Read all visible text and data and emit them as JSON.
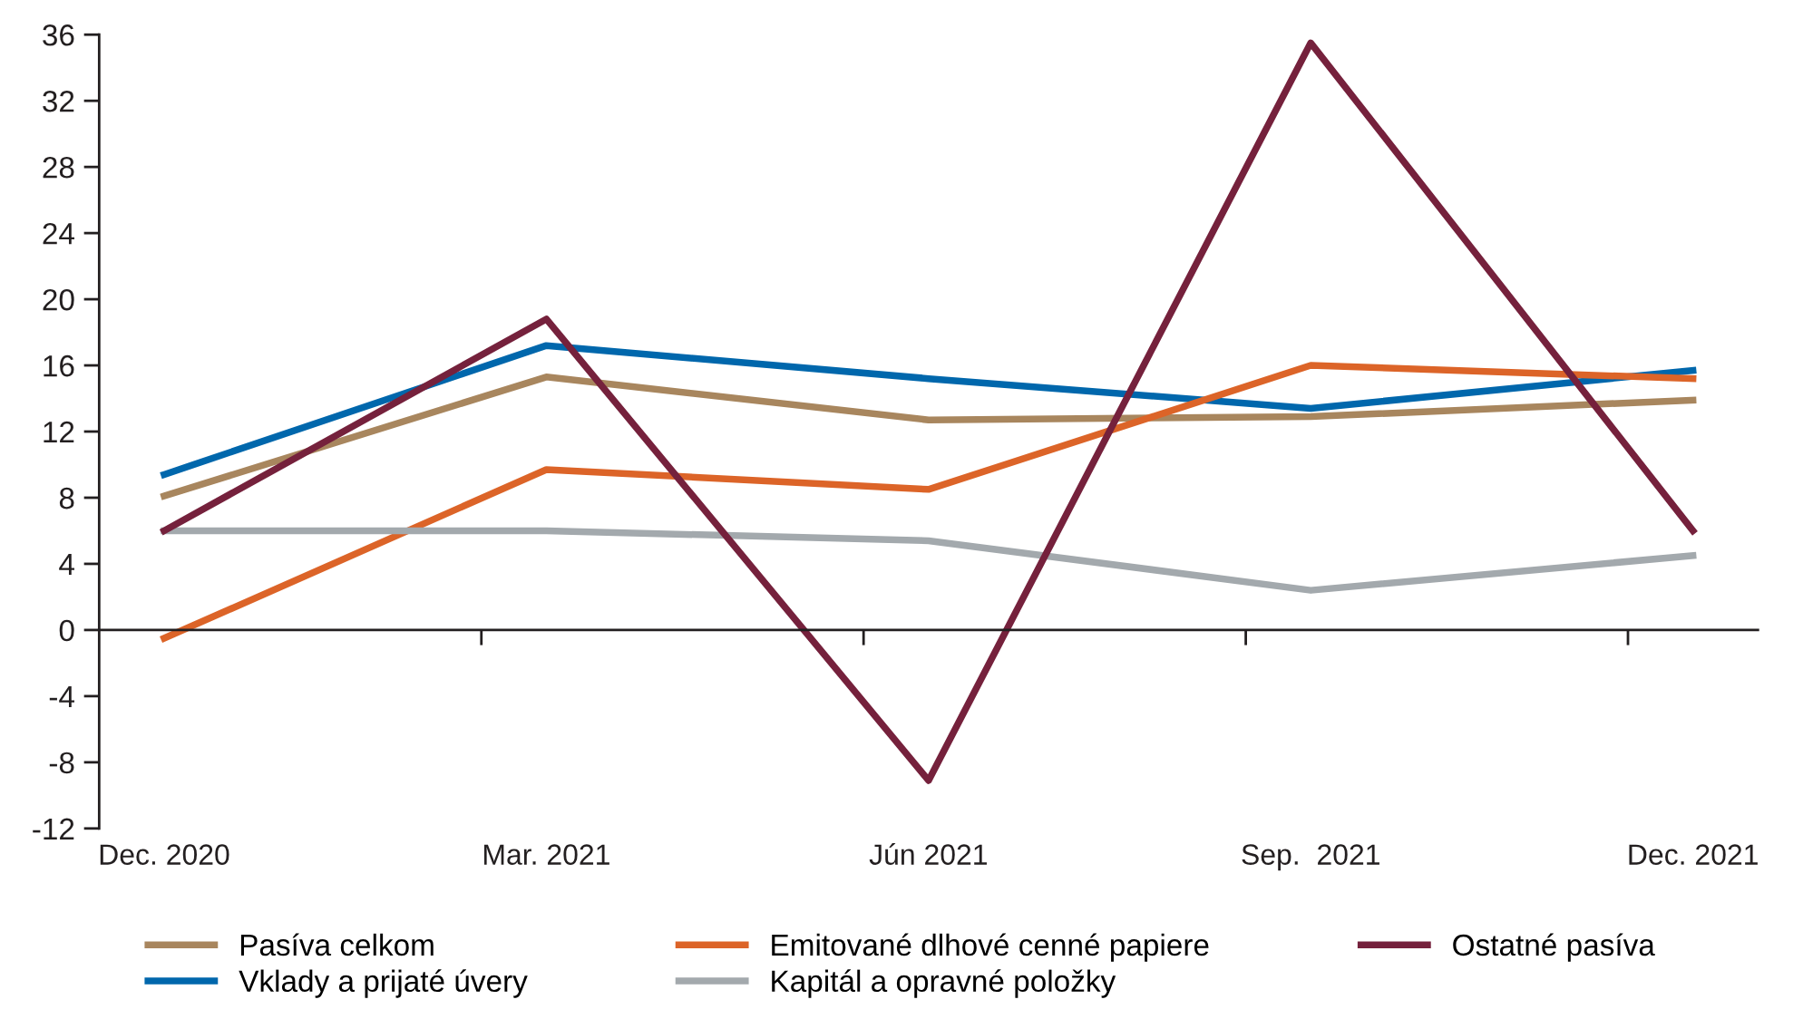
{
  "chart_data": {
    "type": "line",
    "categories": [
      "Dec. 2020",
      "Mar. 2021",
      "Jún 2021",
      "Sep.  2021",
      "Dec. 2021"
    ],
    "series": [
      {
        "name": "Pasíva celkom",
        "color": "#a8865e",
        "values": [
          8.1,
          15.3,
          12.7,
          12.9,
          13.9
        ]
      },
      {
        "name": "Vklady a prijaté úvery",
        "color": "#0067ac",
        "values": [
          9.4,
          17.2,
          15.2,
          13.4,
          15.7
        ]
      },
      {
        "name": "Emitované dlhové cenné papiere",
        "color": "#dc6428",
        "values": [
          -0.5,
          9.7,
          8.5,
          16.0,
          15.2
        ]
      },
      {
        "name": "Kapitál a opravné položky",
        "color": "#a3a9ad",
        "values": [
          6.0,
          6.0,
          5.4,
          2.4,
          4.5
        ]
      },
      {
        "name": "Ostatné pasíva",
        "color": "#75213c",
        "values": [
          6.0,
          18.8,
          -9.1,
          35.5,
          6.0
        ]
      }
    ],
    "ylim": [
      -12,
      36
    ],
    "yticks": [
      -12,
      -8,
      -4,
      0,
      4,
      8,
      12,
      16,
      20,
      24,
      28,
      32,
      36
    ],
    "legend": "bottom",
    "line_style": "solid"
  }
}
